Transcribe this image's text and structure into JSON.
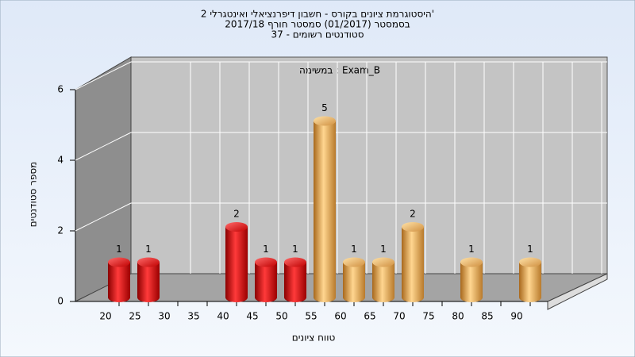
{
  "chart_data": {
    "type": "bar3d",
    "title": [
      "היסטוגרמת ציונים בקורס - חשבון דיפרנציאלי ואינטגרלי 2'",
      "בסמסטר (01/2017) סמסטר חורף 2017/18",
      "סטודנטים רשומים - 37"
    ],
    "subtitle": "במשימה : Exam_B",
    "y_label": "מספר סטודנטים",
    "x_label": "טווח ציונים",
    "categories": [
      "20",
      "25",
      "30",
      "35",
      "40",
      "45",
      "50",
      "55",
      "60",
      "65",
      "70",
      "75",
      "80",
      "85",
      "90"
    ],
    "values": [
      1,
      1,
      0,
      0,
      2,
      1,
      1,
      5,
      1,
      1,
      2,
      0,
      1,
      0,
      1
    ],
    "colors": [
      "red",
      "red",
      "red",
      "red",
      "red",
      "red",
      "red",
      "orange",
      "orange",
      "orange",
      "orange",
      "orange",
      "orange",
      "orange",
      "orange"
    ],
    "ylim": [
      0,
      6
    ],
    "yticks": [
      0,
      2,
      4,
      6
    ],
    "grid": true
  }
}
